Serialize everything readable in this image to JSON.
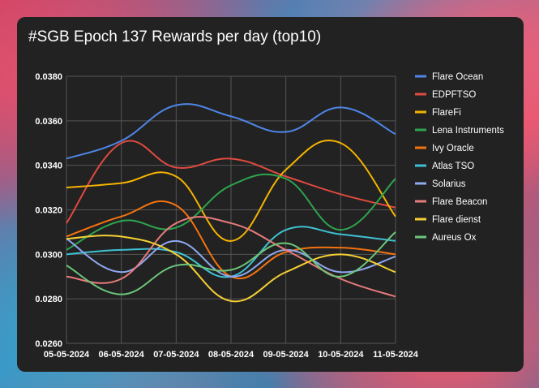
{
  "chart_data": {
    "type": "line",
    "title": "#SGB Epoch 137 Rewards per day (top10)",
    "xlabel": "",
    "ylabel": "",
    "ylim": [
      0.026,
      0.038
    ],
    "yticks": [
      "0.0260",
      "0.0280",
      "0.0300",
      "0.0320",
      "0.0340",
      "0.0360",
      "0.0380"
    ],
    "categories": [
      "05-05-2024",
      "06-05-2024",
      "07-05-2024",
      "08-05-2024",
      "09-05-2024",
      "10-05-2024",
      "11-05-2024"
    ],
    "legend_position": "right",
    "series": [
      {
        "name": "Flare Ocean",
        "color": "#4f86e8",
        "values": [
          0.0343,
          0.0351,
          0.0367,
          0.0362,
          0.0355,
          0.0366,
          0.0354
        ]
      },
      {
        "name": "EDPFTSO",
        "color": "#e04a3f",
        "values": [
          0.0314,
          0.035,
          0.0339,
          0.0343,
          0.0335,
          0.0327,
          0.0321
        ]
      },
      {
        "name": "FlareFi",
        "color": "#f4b400",
        "values": [
          0.033,
          0.0332,
          0.0335,
          0.0306,
          0.0338,
          0.035,
          0.0317
        ]
      },
      {
        "name": "Lena Instruments",
        "color": "#2ea44f",
        "values": [
          0.0302,
          0.0315,
          0.0312,
          0.0331,
          0.0334,
          0.0311,
          0.0334
        ]
      },
      {
        "name": "Ivy Oracle",
        "color": "#f5730f",
        "values": [
          0.0308,
          0.0317,
          0.0322,
          0.029,
          0.0301,
          0.0303,
          0.03
        ]
      },
      {
        "name": "Atlas TSO",
        "color": "#3ec1d3",
        "values": [
          0.03,
          0.0302,
          0.0301,
          0.029,
          0.0311,
          0.0309,
          0.0306
        ]
      },
      {
        "name": "Solarius",
        "color": "#8fa9f0",
        "values": [
          0.0307,
          0.0292,
          0.0306,
          0.029,
          0.0302,
          0.0292,
          0.0299
        ]
      },
      {
        "name": "Flare Beacon",
        "color": "#e87b7b",
        "values": [
          0.029,
          0.0289,
          0.0314,
          0.0314,
          0.0302,
          0.0289,
          0.0281
        ]
      },
      {
        "name": "Flare dienst",
        "color": "#f5d033",
        "values": [
          0.0307,
          0.0308,
          0.03,
          0.0279,
          0.0292,
          0.03,
          0.0292
        ]
      },
      {
        "name": "Aureus Ox",
        "color": "#6cc77a",
        "values": [
          0.0295,
          0.0282,
          0.0295,
          0.0293,
          0.0305,
          0.029,
          0.031
        ]
      }
    ]
  }
}
